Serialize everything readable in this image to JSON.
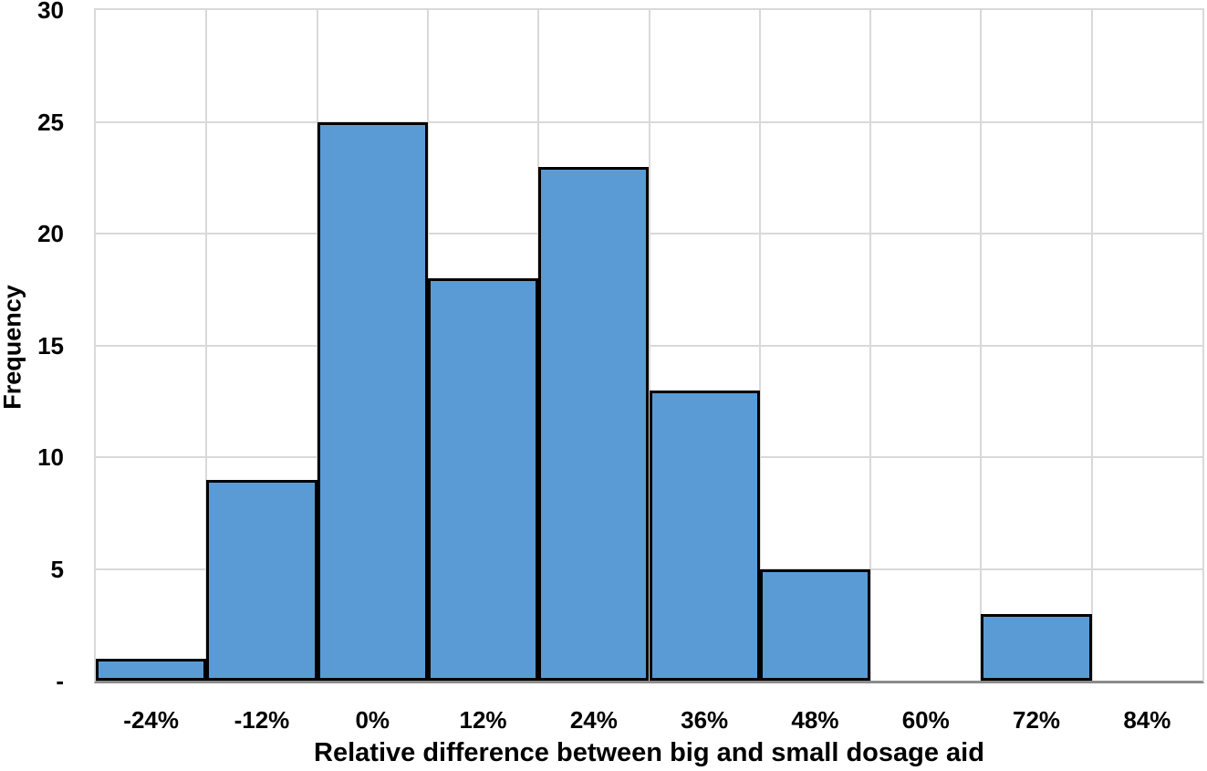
{
  "chart_data": {
    "type": "bar",
    "subtype": "histogram",
    "title": "",
    "xlabel": "Relative difference between big and small dosage aid",
    "ylabel": "Frequency",
    "categories": [
      "-24%",
      "-12%",
      "0%",
      "12%",
      "24%",
      "36%",
      "48%",
      "60%",
      "72%",
      "84%"
    ],
    "values": [
      1,
      9,
      25,
      18,
      23,
      13,
      5,
      0,
      3,
      0
    ],
    "ylim": [
      0,
      30
    ],
    "ytick_step": 5,
    "ytick_labels_top_to_bottom": [
      "30",
      "25",
      "20",
      "15",
      "10",
      "5",
      "-"
    ],
    "zero_tick_label": "-",
    "grid": "both",
    "legend_position": "none",
    "gap_width_percent": 0,
    "colors": {
      "bar_fill": "#5B9BD5",
      "bar_border": "#000000",
      "gridline": "#D9D9D9",
      "axis_line": "#8C8C8C",
      "text": "#000000",
      "background": "#FFFFFF"
    }
  }
}
